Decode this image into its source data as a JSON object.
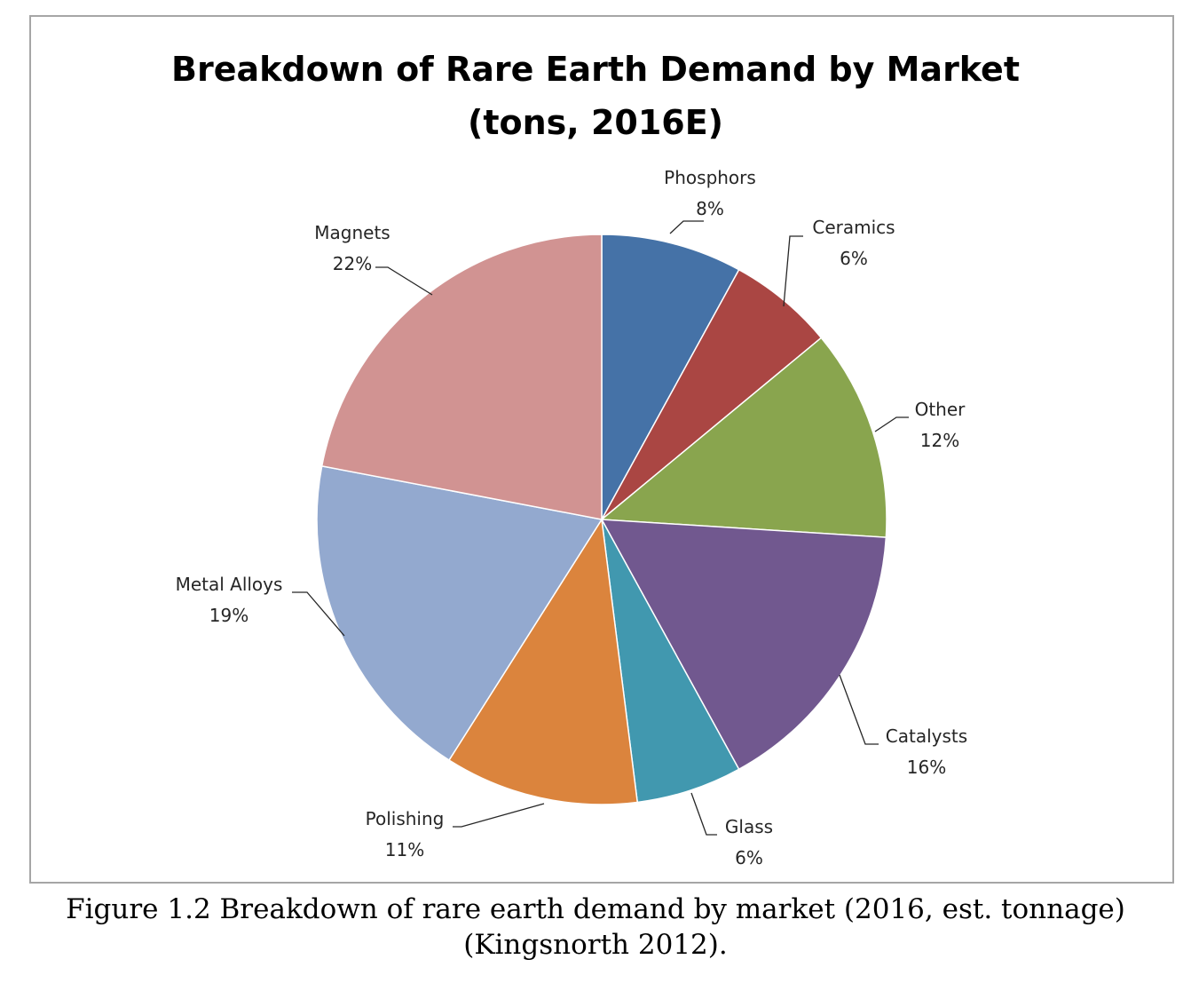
{
  "chart_data": {
    "type": "pie",
    "title": [
      "Breakdown of Rare Earth Demand by Market",
      "(tons, 2016E)"
    ],
    "start_angle_deg": 0,
    "direction": "clockwise",
    "slices": [
      {
        "name": "Phosphors",
        "value": 8,
        "label": "8%",
        "color": "#4572a7"
      },
      {
        "name": "Ceramics",
        "value": 6,
        "label": "6%",
        "color": "#aa4643"
      },
      {
        "name": "Other",
        "value": 12,
        "label": "12%",
        "color": "#89a54e"
      },
      {
        "name": "Catalysts",
        "value": 16,
        "label": "16%",
        "color": "#71588f"
      },
      {
        "name": "Glass",
        "value": 6,
        "label": "6%",
        "color": "#4198af"
      },
      {
        "name": "Polishing",
        "value": 11,
        "label": "11%",
        "color": "#db843d"
      },
      {
        "name": "Metal Alloys",
        "value": 19,
        "label": "19%",
        "color": "#93a9cf"
      },
      {
        "name": "Magnets",
        "value": 22,
        "label": "22%",
        "color": "#d19392"
      }
    ],
    "legend": "none",
    "data_labels": "outside with leader lines"
  },
  "caption": {
    "line1": "Figure 1.2 Breakdown of rare earth demand by market (2016, est. tonnage)",
    "line2": "(Kingsnorth 2012)."
  }
}
